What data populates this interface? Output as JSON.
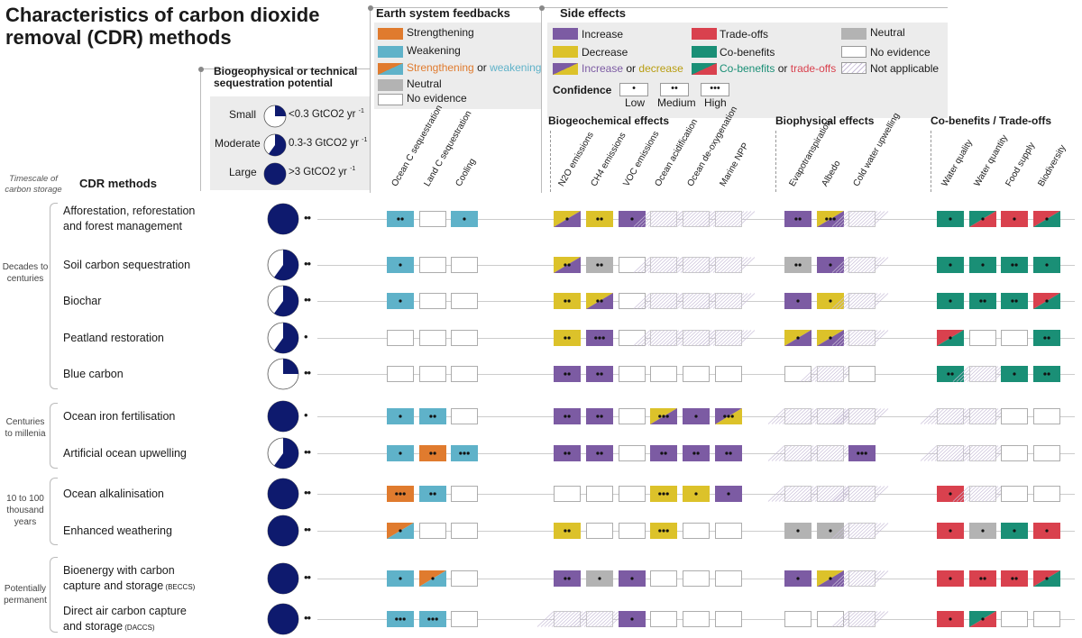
{
  "title": "Characteristics of carbon dioxide removal (CDR) methods",
  "legend": {
    "potential": {
      "title": "Biogeophysical or technical sequestration potential",
      "items": [
        {
          "label": "Small",
          "range": "<0.3 GtCO2 yr",
          "sup": "-1",
          "fill": 0.25
        },
        {
          "label": "Moderate",
          "range": "0.3-3 GtCO2 yr",
          "sup": "-1",
          "fill": 0.6
        },
        {
          "label": "Large",
          "range": ">3 GtCO2 yr",
          "sup": "-1",
          "fill": 1.0
        }
      ]
    },
    "feedbacks": {
      "title": "Earth system feedbacks",
      "strengthening": "Strengthening",
      "weakening": "Weakening",
      "or_a": "Strengthening",
      "or_word": "or",
      "or_b": "weakening",
      "neutral": "Neutral",
      "no_evidence": "No evidence"
    },
    "side_effects": {
      "title": "Side effects",
      "increase": "Increase",
      "decrease": "Decrease",
      "or_a": "Increase",
      "or_word": "or",
      "or_b": "decrease",
      "tradeoffs": "Trade-offs",
      "cobenefits": "Co-benefits",
      "or2_a": "Co-benefits",
      "or2_word": "or",
      "or2_b": "trade-offs",
      "neutral": "Neutral",
      "no_evidence": "No evidence",
      "not_applicable": "Not applicable"
    },
    "confidence": {
      "title": "Confidence",
      "low": "Low",
      "medium": "Medium",
      "high": "High"
    }
  },
  "section_headers": {
    "biogeochemical": "Biogeochemical effects",
    "biophysical": "Biophysical effects",
    "cobenefits": "Co-benefits / Trade-offs"
  },
  "columns": {
    "feedbacks": [
      "Ocean C sequestration",
      "Land C sequestration",
      "Cooling"
    ],
    "biogeochemical": [
      "N2O emissions",
      "CH4 emissions",
      "VOC emissions",
      "Ocean acidification",
      "Ocean de-oxygenation",
      "Marine NPP"
    ],
    "biophysical": [
      "Evapotranspiration",
      "Albedo",
      "Cold water upwelling"
    ],
    "cobenefits": [
      "Water quality",
      "Water quantity",
      "Food supply",
      "Biodiversity"
    ]
  },
  "left_headers": {
    "timescale": "Timescale of carbon storage",
    "methods": "CDR methods"
  },
  "timescales": [
    {
      "label": "Decades to centuries"
    },
    {
      "label": "Centuries to millenia"
    },
    {
      "label": "10 to 100 thousand years"
    },
    {
      "label": "Potentially permanent"
    }
  ],
  "colors": {
    "orange": "#e07b2e",
    "blue": "#5fb2c9",
    "purple": "#7c5ba3",
    "yellow": "#dcc22a",
    "red": "#d9414e",
    "green": "#1a8f76",
    "grey": "#b3b3b3",
    "navy": "#0e1a6e"
  },
  "methods": [
    {
      "name": "Afforestation, reforestation and forest management",
      "potential": 1.0,
      "conf": 2,
      "cells": [
        [
          "B",
          2
        ],
        [
          "E",
          0
        ],
        [
          "B",
          1
        ],
        [
          "YP",
          1
        ],
        [
          "Y",
          2
        ],
        [
          "P",
          1
        ],
        [
          "NA",
          0
        ],
        [
          "NA",
          0
        ],
        [
          "NA",
          0
        ],
        [
          "P",
          2
        ],
        [
          "YP",
          3
        ],
        [
          "NA",
          0
        ],
        [
          "G",
          1
        ],
        [
          "GR",
          1
        ],
        [
          "R",
          1
        ],
        [
          "RG",
          1
        ]
      ]
    },
    {
      "name": "Soil carbon sequestration",
      "potential": 0.6,
      "conf": 2,
      "cells": [
        [
          "B",
          1
        ],
        [
          "E",
          0
        ],
        [
          "E",
          0
        ],
        [
          "YP",
          2
        ],
        [
          "N",
          2
        ],
        [
          "E",
          0
        ],
        [
          "NA",
          0
        ],
        [
          "NA",
          0
        ],
        [
          "NA",
          0
        ],
        [
          "N",
          2
        ],
        [
          "P",
          1
        ],
        [
          "NA",
          0
        ],
        [
          "G",
          1
        ],
        [
          "G",
          1
        ],
        [
          "G",
          2
        ],
        [
          "G",
          1
        ]
      ]
    },
    {
      "name": "Biochar",
      "potential": 0.6,
      "conf": 2,
      "cells": [
        [
          "B",
          1
        ],
        [
          "E",
          0
        ],
        [
          "E",
          0
        ],
        [
          "Y",
          2
        ],
        [
          "YP",
          2
        ],
        [
          "E",
          0
        ],
        [
          "NA",
          0
        ],
        [
          "NA",
          0
        ],
        [
          "NA",
          0
        ],
        [
          "P",
          1
        ],
        [
          "Y",
          1
        ],
        [
          "NA",
          0
        ],
        [
          "G",
          1
        ],
        [
          "G",
          2
        ],
        [
          "G",
          2
        ],
        [
          "RG",
          1
        ]
      ]
    },
    {
      "name": "Peatland restoration",
      "potential": 0.6,
      "conf": 1,
      "cells": [
        [
          "E",
          0
        ],
        [
          "E",
          0
        ],
        [
          "E",
          0
        ],
        [
          "Y",
          2
        ],
        [
          "P",
          3
        ],
        [
          "E",
          0
        ],
        [
          "NA",
          0
        ],
        [
          "NA",
          0
        ],
        [
          "NA",
          0
        ],
        [
          "YP",
          1
        ],
        [
          "YP",
          1
        ],
        [
          "NA",
          0
        ],
        [
          "RG",
          1
        ],
        [
          "E",
          0
        ],
        [
          "E",
          0
        ],
        [
          "G",
          2
        ]
      ]
    },
    {
      "name": "Blue carbon",
      "potential": 0.25,
      "conf": 2,
      "cells": [
        [
          "E",
          0
        ],
        [
          "E",
          0
        ],
        [
          "E",
          0
        ],
        [
          "P",
          2
        ],
        [
          "P",
          2
        ],
        [
          "E",
          0
        ],
        [
          "E",
          0
        ],
        [
          "E",
          0
        ],
        [
          "E",
          0
        ],
        [
          "E",
          0
        ],
        [
          "NA",
          0
        ],
        [
          "E",
          0
        ],
        [
          "G",
          2
        ],
        [
          "NA",
          0
        ],
        [
          "G",
          1
        ],
        [
          "G",
          2
        ]
      ]
    },
    {
      "name": "Ocean iron fertilisation",
      "potential": 1.0,
      "conf": 1,
      "cells": [
        [
          "B",
          1
        ],
        [
          "B",
          2
        ],
        [
          "E",
          0
        ],
        [
          "P",
          2
        ],
        [
          "P",
          2
        ],
        [
          "E",
          0
        ],
        [
          "YP",
          3
        ],
        [
          "P",
          1
        ],
        [
          "PY",
          3
        ],
        [
          "NA",
          0
        ],
        [
          "NA",
          0
        ],
        [
          "NA",
          0
        ],
        [
          "NA",
          0
        ],
        [
          "NA",
          0
        ],
        [
          "E",
          0
        ],
        [
          "E",
          0
        ]
      ]
    },
    {
      "name": "Artificial ocean upwelling",
      "potential": 0.6,
      "conf": 2,
      "cells": [
        [
          "B",
          1
        ],
        [
          "O",
          2
        ],
        [
          "B",
          3
        ],
        [
          "P",
          2
        ],
        [
          "P",
          2
        ],
        [
          "E",
          0
        ],
        [
          "P",
          2
        ],
        [
          "P",
          2
        ],
        [
          "P",
          2
        ],
        [
          "NA",
          0
        ],
        [
          "NA",
          0
        ],
        [
          "P",
          3
        ],
        [
          "NA",
          0
        ],
        [
          "NA",
          0
        ],
        [
          "E",
          0
        ],
        [
          "E",
          0
        ]
      ]
    },
    {
      "name": "Ocean alkalinisation",
      "potential": 1.0,
      "conf": 2,
      "cells": [
        [
          "O",
          3
        ],
        [
          "B",
          2
        ],
        [
          "E",
          0
        ],
        [
          "E",
          0
        ],
        [
          "E",
          0
        ],
        [
          "E",
          0
        ],
        [
          "Y",
          3
        ],
        [
          "Y",
          1
        ],
        [
          "P",
          1
        ],
        [
          "NA",
          0
        ],
        [
          "NA",
          0
        ],
        [
          "NA",
          0
        ],
        [
          "R",
          1
        ],
        [
          "NA",
          0
        ],
        [
          "E",
          0
        ],
        [
          "E",
          0
        ]
      ]
    },
    {
      "name": "Enhanced weathering",
      "potential": 1.0,
      "conf": 2,
      "cells": [
        [
          "OB",
          1
        ],
        [
          "E",
          0
        ],
        [
          "E",
          0
        ],
        [
          "Y",
          2
        ],
        [
          "E",
          0
        ],
        [
          "E",
          0
        ],
        [
          "Y",
          3
        ],
        [
          "E",
          0
        ],
        [
          "E",
          0
        ],
        [
          "N",
          1
        ],
        [
          "N",
          1
        ],
        [
          "NA",
          0
        ],
        [
          "R",
          1
        ],
        [
          "N",
          1
        ],
        [
          "G",
          1
        ],
        [
          "R",
          1
        ]
      ]
    },
    {
      "name": "Bioenergy with carbon capture and storage",
      "tag": "(BECCS)",
      "potential": 1.0,
      "conf": 2,
      "cells": [
        [
          "B",
          1
        ],
        [
          "OB",
          1
        ],
        [
          "E",
          0
        ],
        [
          "P",
          2
        ],
        [
          "N",
          1
        ],
        [
          "P",
          1
        ],
        [
          "E",
          0
        ],
        [
          "E",
          0
        ],
        [
          "E",
          0
        ],
        [
          "P",
          1
        ],
        [
          "YP",
          1
        ],
        [
          "NA",
          0
        ],
        [
          "R",
          1
        ],
        [
          "R",
          2
        ],
        [
          "R",
          2
        ],
        [
          "RG",
          1
        ]
      ]
    },
    {
      "name": "Direct air carbon capture and storage",
      "tag": "(DACCS)",
      "potential": 1.0,
      "conf": 2,
      "cells": [
        [
          "B",
          3
        ],
        [
          "B",
          3
        ],
        [
          "E",
          0
        ],
        [
          "NA",
          0
        ],
        [
          "NA",
          0
        ],
        [
          "P",
          1
        ],
        [
          "E",
          0
        ],
        [
          "E",
          0
        ],
        [
          "E",
          0
        ],
        [
          "E",
          0
        ],
        [
          "E",
          0
        ],
        [
          "NA",
          0
        ],
        [
          "R",
          1
        ],
        [
          "GR",
          1
        ],
        [
          "E",
          0
        ],
        [
          "E",
          0
        ]
      ]
    }
  ]
}
